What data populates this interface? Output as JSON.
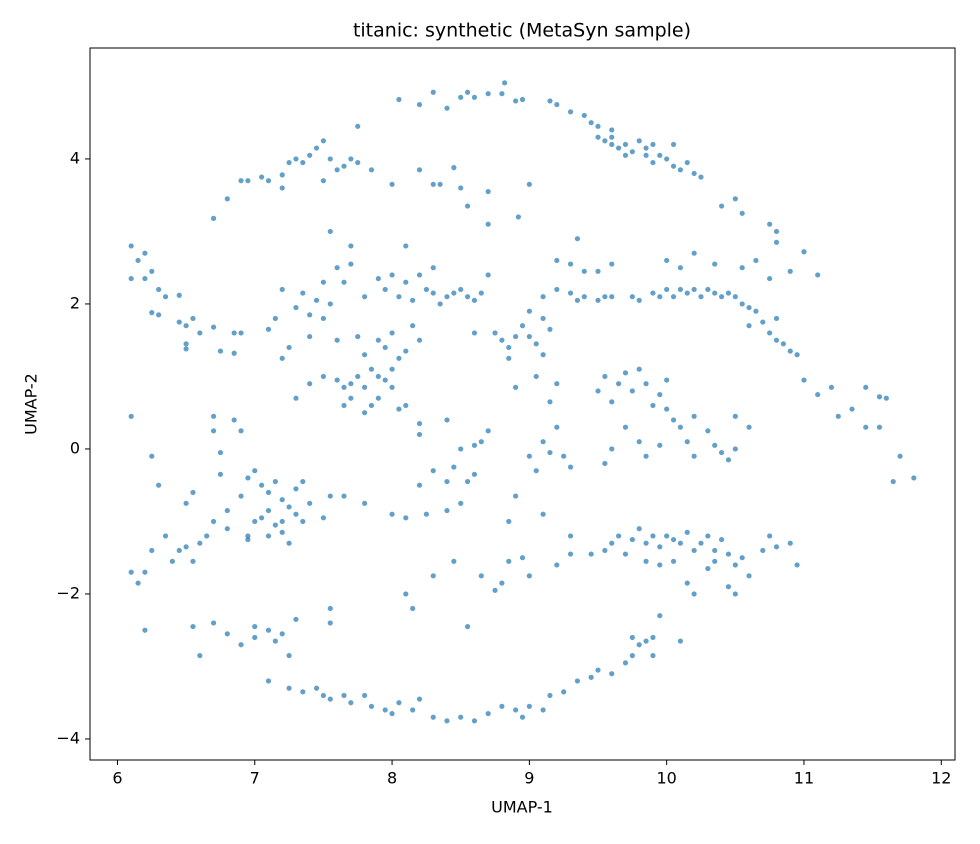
{
  "chart_data": {
    "type": "scatter",
    "title": "titanic: synthetic (MetaSyn sample)",
    "x_label": "UMAP-1",
    "y_label": "UMAP-2",
    "color": "#1f77b4",
    "grid": false,
    "xlim": [
      5.8,
      12.1
    ],
    "ylim": [
      -4.29,
      5.53
    ],
    "xticks": [
      6,
      7,
      8,
      9,
      10,
      11,
      12
    ],
    "yticks": [
      {
        "value": -4,
        "label": "−4"
      },
      {
        "value": -2,
        "label": "−2"
      },
      0,
      2,
      4
    ],
    "x": [
      8.05,
      8.2,
      8.3,
      8.4,
      8.5,
      8.55,
      8.6,
      8.7,
      8.8,
      8.82,
      8.9,
      8.95,
      9.15,
      9.2,
      9.3,
      9.4,
      9.45,
      9.5,
      9.5,
      9.55,
      9.6,
      9.6,
      9.65,
      9.7,
      9.75,
      9.8,
      9.85,
      9.9,
      9.95,
      9.9,
      10.0,
      10.05,
      10.1,
      10.15,
      10.2,
      10.25,
      10.05,
      9.85,
      9.7,
      9.6,
      10.4,
      10.5,
      10.55,
      10.75,
      10.8,
      10.8,
      11.0,
      6.95,
      6.9,
      6.8,
      6.7,
      7.05,
      7.1,
      7.2,
      7.25,
      7.3,
      7.35,
      7.4,
      7.45,
      7.5,
      7.55,
      7.6,
      7.65,
      7.7,
      7.75,
      7.75,
      7.85,
      8.0,
      8.2,
      8.3,
      8.35,
      8.45,
      8.5,
      8.55,
      8.7,
      8.7,
      8.92,
      9.0,
      7.2,
      7.5,
      6.1,
      6.15,
      6.2,
      6.25,
      6.2,
      6.3,
      6.35,
      6.25,
      6.3,
      6.45,
      6.5,
      6.6,
      6.5,
      6.5,
      6.7,
      6.85,
      6.9,
      6.75,
      6.1,
      6.45,
      6.55,
      6.85,
      7.1,
      7.15,
      7.2,
      7.3,
      7.35,
      7.4,
      7.45,
      7.5,
      7.55,
      7.6,
      7.65,
      7.7,
      7.7,
      7.55,
      7.8,
      7.9,
      7.95,
      8.0,
      8.05,
      8.1,
      8.15,
      8.2,
      8.25,
      8.3,
      8.35,
      8.4,
      8.45,
      8.5,
      8.55,
      8.6,
      8.65,
      8.1,
      8.3,
      8.7,
      7.4,
      7.5,
      7.6,
      7.65,
      7.7,
      7.7,
      7.75,
      7.8,
      7.85,
      7.9,
      7.95,
      8.0,
      7.8,
      7.9,
      7.95,
      8.0,
      8.05,
      8.1,
      8.15,
      8.2,
      7.75,
      7.65,
      7.8,
      7.85,
      7.9,
      8.0,
      8.05,
      8.2,
      7.6,
      7.5,
      7.2,
      7.3,
      7.4,
      7.25,
      8.75,
      8.8,
      8.85,
      8.9,
      8.95,
      9.0,
      9.05,
      9.1,
      9.15,
      9.0,
      9.1,
      8.85,
      8.6,
      9.05,
      8.9,
      9.1,
      9.2,
      9.3,
      9.35,
      9.4,
      9.5,
      9.55,
      9.6,
      9.3,
      9.35,
      9.2,
      9.4,
      9.5,
      9.6,
      9.75,
      9.8,
      9.9,
      9.95,
      10.0,
      10.05,
      10.1,
      10.15,
      10.2,
      10.25,
      10.3,
      10.35,
      10.4,
      10.45,
      10.5,
      10.55,
      10.6,
      10.65,
      10.7,
      10.75,
      10.8,
      10.85,
      10.9,
      10.95,
      10.0,
      10.1,
      10.2,
      10.35,
      10.55,
      10.65,
      10.75,
      10.9,
      11.1,
      10.6,
      10.8,
      11.0,
      11.1,
      11.2,
      11.35,
      11.45,
      11.55,
      11.6,
      11.45,
      11.55,
      11.7,
      11.8,
      11.65,
      11.25,
      9.5,
      9.55,
      9.6,
      9.65,
      9.7,
      9.75,
      9.8,
      9.85,
      9.9,
      9.95,
      10.0,
      10.05,
      10.1,
      10.15,
      10.2,
      10.3,
      10.35,
      10.4,
      10.45,
      10.5,
      10.2,
      9.7,
      9.8,
      9.6,
      9.55,
      9.85,
      9.95,
      9.2,
      9.15,
      9.1,
      9.15,
      9.2,
      9.25,
      9.0,
      9.05,
      9.3,
      10.6,
      10.5,
      10.0,
      8.1,
      8.2,
      8.4,
      8.5,
      8.6,
      8.65,
      8.45,
      8.55,
      8.6,
      8.3,
      8.4,
      8.7,
      6.95,
      7.0,
      7.05,
      7.1,
      7.15,
      7.2,
      7.25,
      7.3,
      7.2,
      7.15,
      7.1,
      7.05,
      7.0,
      7.1,
      7.2,
      7.25,
      7.35,
      7.4,
      7.3,
      7.35,
      6.95,
      6.9,
      6.8,
      6.75,
      6.75,
      6.7,
      6.7,
      6.85,
      6.9,
      6.55,
      7.55,
      7.65,
      7.8,
      7.5,
      6.5,
      6.95,
      6.1,
      6.1,
      6.15,
      6.2,
      6.3,
      6.25,
      6.35,
      6.4,
      6.45,
      6.5,
      6.55,
      6.6,
      6.65,
      6.7,
      6.8,
      6.25,
      6.2,
      9.3,
      9.45,
      9.55,
      9.6,
      9.65,
      9.75,
      9.8,
      9.85,
      9.9,
      9.95,
      10.0,
      10.05,
      10.1,
      10.15,
      10.2,
      10.25,
      10.3,
      10.35,
      10.4,
      10.45,
      10.5,
      10.55,
      10.6,
      10.7,
      10.75,
      10.8,
      10.9,
      10.95,
      9.95,
      10.05,
      10.15,
      10.2,
      10.35,
      10.45,
      10.5,
      10.3,
      9.7,
      9.85,
      6.55,
      6.6,
      6.7,
      6.8,
      6.9,
      7.0,
      7.0,
      7.1,
      7.15,
      7.2,
      7.3,
      7.25,
      7.1,
      7.25,
      7.35,
      7.45,
      7.5,
      7.55,
      7.65,
      7.7,
      7.8,
      7.85,
      7.95,
      8.0,
      8.05,
      8.15,
      8.2,
      8.3,
      8.4,
      8.5,
      8.6,
      8.7,
      8.8,
      8.9,
      8.95,
      9.0,
      9.1,
      9.15,
      9.25,
      9.35,
      9.45,
      9.5,
      9.6,
      9.7,
      9.75,
      9.8,
      9.85,
      9.9,
      9.75,
      9.9,
      10.1,
      9.95,
      7.55,
      7.55,
      8.55,
      8.1,
      8.15,
      8.3,
      8.45,
      8.65,
      8.75,
      8.8,
      8.85,
      8.95,
      9.0,
      9.2,
      9.3,
      8.85,
      9.1,
      8.0,
      8.1,
      8.25,
      8.4,
      8.5,
      8.9,
      8.2
    ],
    "y": [
      4.82,
      4.75,
      4.92,
      4.7,
      4.85,
      4.92,
      4.85,
      4.9,
      4.9,
      5.05,
      4.8,
      4.82,
      4.8,
      4.75,
      4.65,
      4.6,
      4.5,
      4.45,
      4.3,
      4.25,
      4.3,
      4.2,
      4.15,
      4.2,
      4.1,
      4.25,
      4.15,
      4.2,
      4.05,
      3.95,
      4.0,
      3.9,
      3.85,
      3.95,
      3.8,
      3.75,
      4.2,
      4.05,
      4.05,
      4.4,
      3.35,
      3.45,
      3.25,
      3.1,
      3.0,
      2.85,
      2.72,
      3.7,
      3.7,
      3.45,
      3.18,
      3.75,
      3.7,
      3.78,
      3.95,
      4.0,
      3.95,
      4.05,
      4.15,
      4.25,
      4.0,
      3.85,
      3.9,
      4.0,
      3.95,
      4.45,
      3.85,
      3.65,
      3.85,
      3.65,
      3.65,
      3.88,
      3.6,
      3.35,
      3.55,
      3.1,
      3.2,
      3.65,
      3.6,
      3.7,
      2.8,
      2.6,
      2.7,
      2.45,
      2.35,
      2.2,
      2.1,
      1.88,
      1.85,
      1.75,
      1.7,
      1.6,
      1.45,
      1.38,
      1.68,
      1.6,
      1.6,
      1.35,
      2.35,
      2.12,
      1.8,
      1.32,
      1.65,
      1.8,
      2.2,
      1.95,
      2.15,
      1.85,
      2.05,
      2.3,
      2.0,
      2.5,
      2.3,
      2.55,
      2.8,
      3.0,
      2.1,
      2.35,
      2.2,
      2.4,
      2.1,
      2.3,
      2.05,
      2.4,
      2.2,
      2.15,
      2.0,
      2.1,
      2.15,
      2.2,
      2.1,
      2.05,
      2.15,
      2.8,
      2.5,
      2.4,
      0.9,
      1.0,
      0.95,
      0.85,
      0.9,
      0.7,
      1.0,
      0.85,
      1.1,
      1.0,
      0.95,
      1.1,
      1.3,
      1.5,
      1.4,
      1.6,
      1.25,
      1.35,
      1.7,
      1.5,
      1.55,
      0.6,
      0.5,
      0.6,
      0.7,
      0.85,
      0.55,
      0.35,
      1.5,
      1.8,
      1.25,
      0.7,
      1.55,
      1.4,
      1.6,
      1.5,
      1.4,
      1.55,
      1.7,
      1.55,
      1.45,
      1.3,
      1.65,
      1.9,
      1.8,
      1.25,
      1.6,
      1.0,
      0.85,
      2.1,
      2.2,
      2.15,
      2.05,
      2.1,
      2.05,
      2.1,
      2.1,
      2.55,
      2.9,
      2.6,
      2.45,
      2.45,
      2.55,
      2.1,
      2.05,
      2.15,
      2.1,
      2.2,
      2.1,
      2.2,
      2.15,
      2.2,
      2.1,
      2.2,
      2.15,
      2.1,
      2.15,
      2.1,
      2.0,
      1.95,
      1.9,
      1.75,
      1.6,
      1.5,
      1.45,
      1.35,
      1.3,
      2.6,
      2.5,
      2.7,
      2.55,
      2.5,
      2.6,
      2.35,
      2.45,
      2.4,
      1.7,
      1.8,
      0.95,
      0.75,
      0.85,
      0.55,
      0.85,
      0.72,
      0.7,
      0.3,
      0.3,
      -0.1,
      -0.4,
      -0.45,
      0.45,
      0.8,
      1.0,
      0.65,
      0.9,
      1.05,
      0.8,
      1.1,
      0.9,
      0.6,
      0.75,
      0.55,
      0.4,
      0.3,
      0.1,
      -0.1,
      0.25,
      0.05,
      -0.05,
      -0.15,
      0.0,
      0.45,
      0.3,
      0.1,
      0.0,
      -0.2,
      -0.1,
      0.05,
      0.9,
      0.65,
      0.1,
      -0.05,
      0.3,
      -0.1,
      -0.1,
      -0.3,
      -0.25,
      0.3,
      0.45,
      0.95,
      0.6,
      0.2,
      0.4,
      0.0,
      0.05,
      0.1,
      -0.25,
      -0.45,
      -0.35,
      -0.3,
      -0.45,
      0.25,
      -0.4,
      -0.3,
      -0.5,
      -0.6,
      -0.45,
      -0.7,
      -0.8,
      -0.9,
      -1.0,
      -1.05,
      -0.85,
      -0.95,
      -1.0,
      -1.2,
      -1.15,
      -1.3,
      -1.0,
      -0.75,
      -0.55,
      -0.45,
      -1.2,
      -0.65,
      -0.85,
      -0.35,
      -0.05,
      0.25,
      0.45,
      0.4,
      0.25,
      -0.6,
      -0.65,
      -0.65,
      -0.75,
      -0.95,
      -0.75,
      -1.25,
      0.45,
      -1.7,
      -1.85,
      -1.7,
      -0.5,
      -0.1,
      -1.2,
      -1.55,
      -1.4,
      -1.35,
      -1.55,
      -1.3,
      -1.2,
      -1.0,
      -1.1,
      -1.4,
      -2.5,
      -1.2,
      -1.45,
      -1.4,
      -1.3,
      -1.2,
      -1.25,
      -1.1,
      -1.3,
      -1.2,
      -1.35,
      -1.2,
      -1.25,
      -1.3,
      -1.15,
      -1.4,
      -1.3,
      -1.2,
      -1.4,
      -1.25,
      -1.45,
      -1.6,
      -1.5,
      -1.75,
      -1.4,
      -1.2,
      -1.35,
      -1.3,
      -1.6,
      -1.6,
      -1.55,
      -1.85,
      -2.0,
      -1.55,
      -1.9,
      -2.0,
      -1.65,
      -1.45,
      -1.55,
      -2.45,
      -2.85,
      -2.4,
      -2.55,
      -2.7,
      -2.45,
      -2.6,
      -2.5,
      -2.65,
      -2.55,
      -2.35,
      -2.85,
      -3.2,
      -3.3,
      -3.35,
      -3.3,
      -3.4,
      -3.45,
      -3.4,
      -3.5,
      -3.4,
      -3.55,
      -3.6,
      -3.65,
      -3.5,
      -3.6,
      -3.45,
      -3.7,
      -3.75,
      -3.7,
      -3.75,
      -3.65,
      -3.55,
      -3.6,
      -3.7,
      -3.55,
      -3.6,
      -3.4,
      -3.35,
      -3.2,
      -3.15,
      -3.05,
      -3.1,
      -2.95,
      -2.85,
      -2.7,
      -2.65,
      -2.6,
      -2.6,
      -2.85,
      -2.65,
      -2.3,
      -2.2,
      -2.4,
      -2.45,
      -2.0,
      -2.2,
      -1.75,
      -1.55,
      -1.75,
      -1.95,
      -1.85,
      -1.55,
      -1.5,
      -1.75,
      -1.6,
      -1.45,
      -1.0,
      -0.9,
      -0.9,
      -0.95,
      -0.9,
      -0.85,
      -0.75,
      -0.65,
      -0.5
    ]
  }
}
